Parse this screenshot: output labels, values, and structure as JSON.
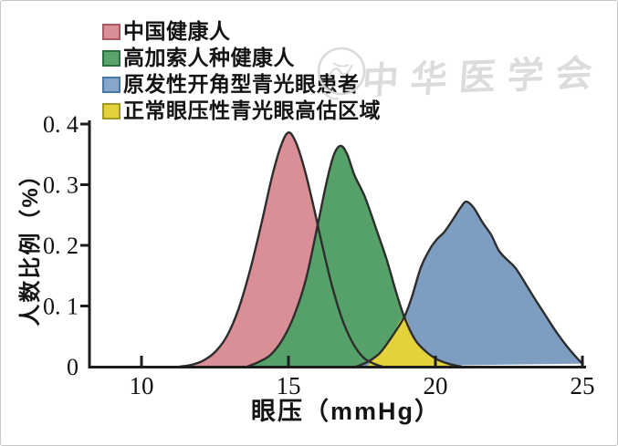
{
  "watermark": {
    "text": "中华医学会",
    "seal_icon": "seal-icon",
    "color": "#d6d6d6"
  },
  "legend": {
    "items": [
      {
        "label": "中国健康人",
        "swatch": "#d98f95",
        "swatch_border": "#a85a60"
      },
      {
        "label": "高加索人种健康人",
        "swatch": "#5aa46c",
        "swatch_border": "#2e7044"
      },
      {
        "label": "原发性开角型青光眼患者",
        "swatch": "#84a7cb",
        "swatch_border": "#4a78a6"
      },
      {
        "label": "正常眼压性青光眼高估区域",
        "swatch": "#e3d23c",
        "swatch_border": "#a29a20"
      }
    ]
  },
  "colors": {
    "axis": "#1d1d1d",
    "curve_stroke": "#2d2d2d",
    "tick_text": "#111111"
  },
  "chart_data": {
    "type": "area",
    "title": "",
    "xlabel": "眼压（mmHg）",
    "ylabel": "人数比例（%）",
    "xlim": [
      8.2,
      25.1
    ],
    "ylim": [
      0,
      0.4
    ],
    "grid": false,
    "legend_position": "top-left",
    "xticks": [
      10,
      15,
      20,
      25
    ],
    "xtick_labels": [
      "10",
      "15",
      "20",
      "25"
    ],
    "yticks": [
      0,
      0.1,
      0.2,
      0.3,
      0.4
    ],
    "ytick_labels": [
      "0",
      "0. 1",
      "0. 2",
      "0. 3",
      "0. 4"
    ],
    "series": [
      {
        "name": "中国健康人",
        "color": "#d98f95",
        "opacity": 1,
        "outlined": true,
        "points": [
          [
            11.3,
            0
          ],
          [
            11.7,
            0.003
          ],
          [
            12.1,
            0.01
          ],
          [
            12.5,
            0.024
          ],
          [
            12.9,
            0.05
          ],
          [
            13.3,
            0.095
          ],
          [
            13.7,
            0.16
          ],
          [
            14.1,
            0.24
          ],
          [
            14.45,
            0.315
          ],
          [
            14.75,
            0.365
          ],
          [
            15.0,
            0.386
          ],
          [
            15.25,
            0.37
          ],
          [
            15.55,
            0.325
          ],
          [
            15.85,
            0.265
          ],
          [
            16.15,
            0.2
          ],
          [
            16.5,
            0.13
          ],
          [
            16.85,
            0.075
          ],
          [
            17.2,
            0.038
          ],
          [
            17.55,
            0.015
          ],
          [
            17.9,
            0.005
          ],
          [
            18.2,
            0
          ]
        ]
      },
      {
        "name": "高加索人种健康人",
        "color": "#56a169",
        "opacity": 1,
        "outlined": true,
        "points": [
          [
            13.6,
            0
          ],
          [
            14.0,
            0.008
          ],
          [
            14.4,
            0.02
          ],
          [
            14.8,
            0.045
          ],
          [
            15.2,
            0.085
          ],
          [
            15.6,
            0.145
          ],
          [
            16.0,
            0.235
          ],
          [
            16.3,
            0.305
          ],
          [
            16.55,
            0.35
          ],
          [
            16.78,
            0.364
          ],
          [
            17.0,
            0.35
          ],
          [
            17.25,
            0.315
          ],
          [
            17.6,
            0.28
          ],
          [
            18.0,
            0.225
          ],
          [
            18.35,
            0.175
          ],
          [
            18.65,
            0.125
          ],
          [
            18.94,
            0.082
          ],
          [
            19.3,
            0.045
          ],
          [
            19.7,
            0.024
          ],
          [
            20.1,
            0.011
          ],
          [
            20.5,
            0.004
          ],
          [
            20.9,
            0
          ]
        ]
      },
      {
        "name": "原发性开角型青光眼患者",
        "color": "#7296bc",
        "opacity": 0.92,
        "outlined": true,
        "points": [
          [
            17.3,
            0
          ],
          [
            17.7,
            0.008
          ],
          [
            18.1,
            0.022
          ],
          [
            18.5,
            0.048
          ],
          [
            18.94,
            0.082
          ],
          [
            19.2,
            0.115
          ],
          [
            19.5,
            0.163
          ],
          [
            19.8,
            0.193
          ],
          [
            20.05,
            0.21
          ],
          [
            20.3,
            0.222
          ],
          [
            20.6,
            0.243
          ],
          [
            20.85,
            0.262
          ],
          [
            21.05,
            0.272
          ],
          [
            21.3,
            0.262
          ],
          [
            21.6,
            0.238
          ],
          [
            21.9,
            0.217
          ],
          [
            22.15,
            0.192
          ],
          [
            22.4,
            0.178
          ],
          [
            22.7,
            0.164
          ],
          [
            23.0,
            0.142
          ],
          [
            23.3,
            0.118
          ],
          [
            23.7,
            0.088
          ],
          [
            24.1,
            0.058
          ],
          [
            24.5,
            0.032
          ],
          [
            24.8,
            0.015
          ],
          [
            25.0,
            0.005
          ]
        ]
      },
      {
        "name": "正常眼压性青光眼高估区域",
        "color": "#e3d23c",
        "opacity": 1,
        "outlined": false,
        "points": [
          [
            17.65,
            0
          ],
          [
            18.1,
            0.022
          ],
          [
            18.5,
            0.048
          ],
          [
            18.94,
            0.082
          ],
          [
            19.3,
            0.045
          ],
          [
            19.7,
            0.024
          ],
          [
            20.1,
            0.011
          ],
          [
            20.45,
            0.003
          ],
          [
            20.6,
            0
          ]
        ]
      }
    ]
  }
}
